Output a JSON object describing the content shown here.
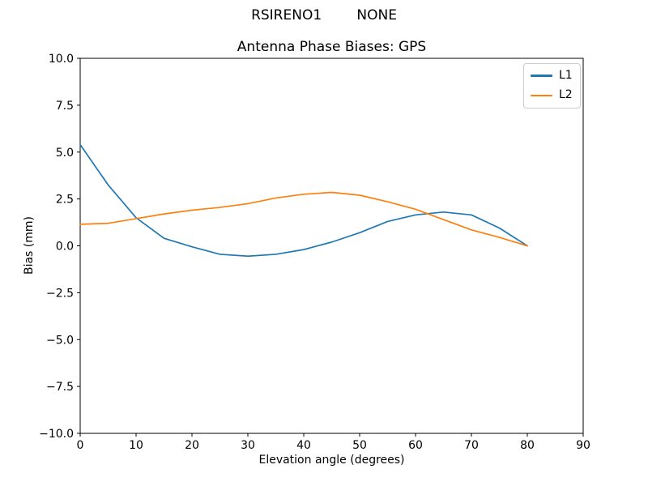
{
  "figure": {
    "suptitle": "RSIRENO1        NONE",
    "background": "#ffffff"
  },
  "chart_data": {
    "type": "line",
    "title": "Antenna Phase Biases: GPS",
    "xlabel": "Elevation angle (degrees)",
    "ylabel": "Bias (mm)",
    "xlim": [
      0,
      90
    ],
    "ylim": [
      -10,
      10
    ],
    "grid": false,
    "legend_position": "upper right",
    "axis_color": "#000000",
    "x": [
      0,
      5,
      10,
      15,
      20,
      25,
      30,
      35,
      40,
      45,
      50,
      55,
      60,
      65,
      70,
      75,
      80
    ],
    "series": [
      {
        "name": "L1",
        "color": "#1f77b4",
        "values": [
          5.4,
          3.25,
          1.5,
          0.4,
          -0.05,
          -0.45,
          -0.55,
          -0.45,
          -0.2,
          0.2,
          0.7,
          1.3,
          1.65,
          1.8,
          1.65,
          0.95,
          0.0
        ]
      },
      {
        "name": "L2",
        "color": "#ff7f0e",
        "values": [
          1.15,
          1.2,
          1.45,
          1.7,
          1.9,
          2.05,
          2.25,
          2.55,
          2.75,
          2.85,
          2.7,
          2.35,
          1.95,
          1.4,
          0.85,
          0.45,
          0.0
        ]
      }
    ],
    "xticks": {
      "values": [
        0,
        10,
        20,
        30,
        40,
        50,
        60,
        70,
        80,
        90
      ],
      "labels": [
        "0",
        "10",
        "20",
        "30",
        "40",
        "50",
        "60",
        "70",
        "80",
        "90"
      ]
    },
    "yticks": {
      "values": [
        10,
        7.5,
        5,
        2.5,
        0,
        -2.5,
        -5,
        -7.5,
        -10
      ],
      "labels": [
        "10.0",
        "7.5",
        "5.0",
        "2.5",
        "0.0",
        "−2.5",
        "−5.0",
        "−7.5",
        "−10.0"
      ]
    }
  }
}
